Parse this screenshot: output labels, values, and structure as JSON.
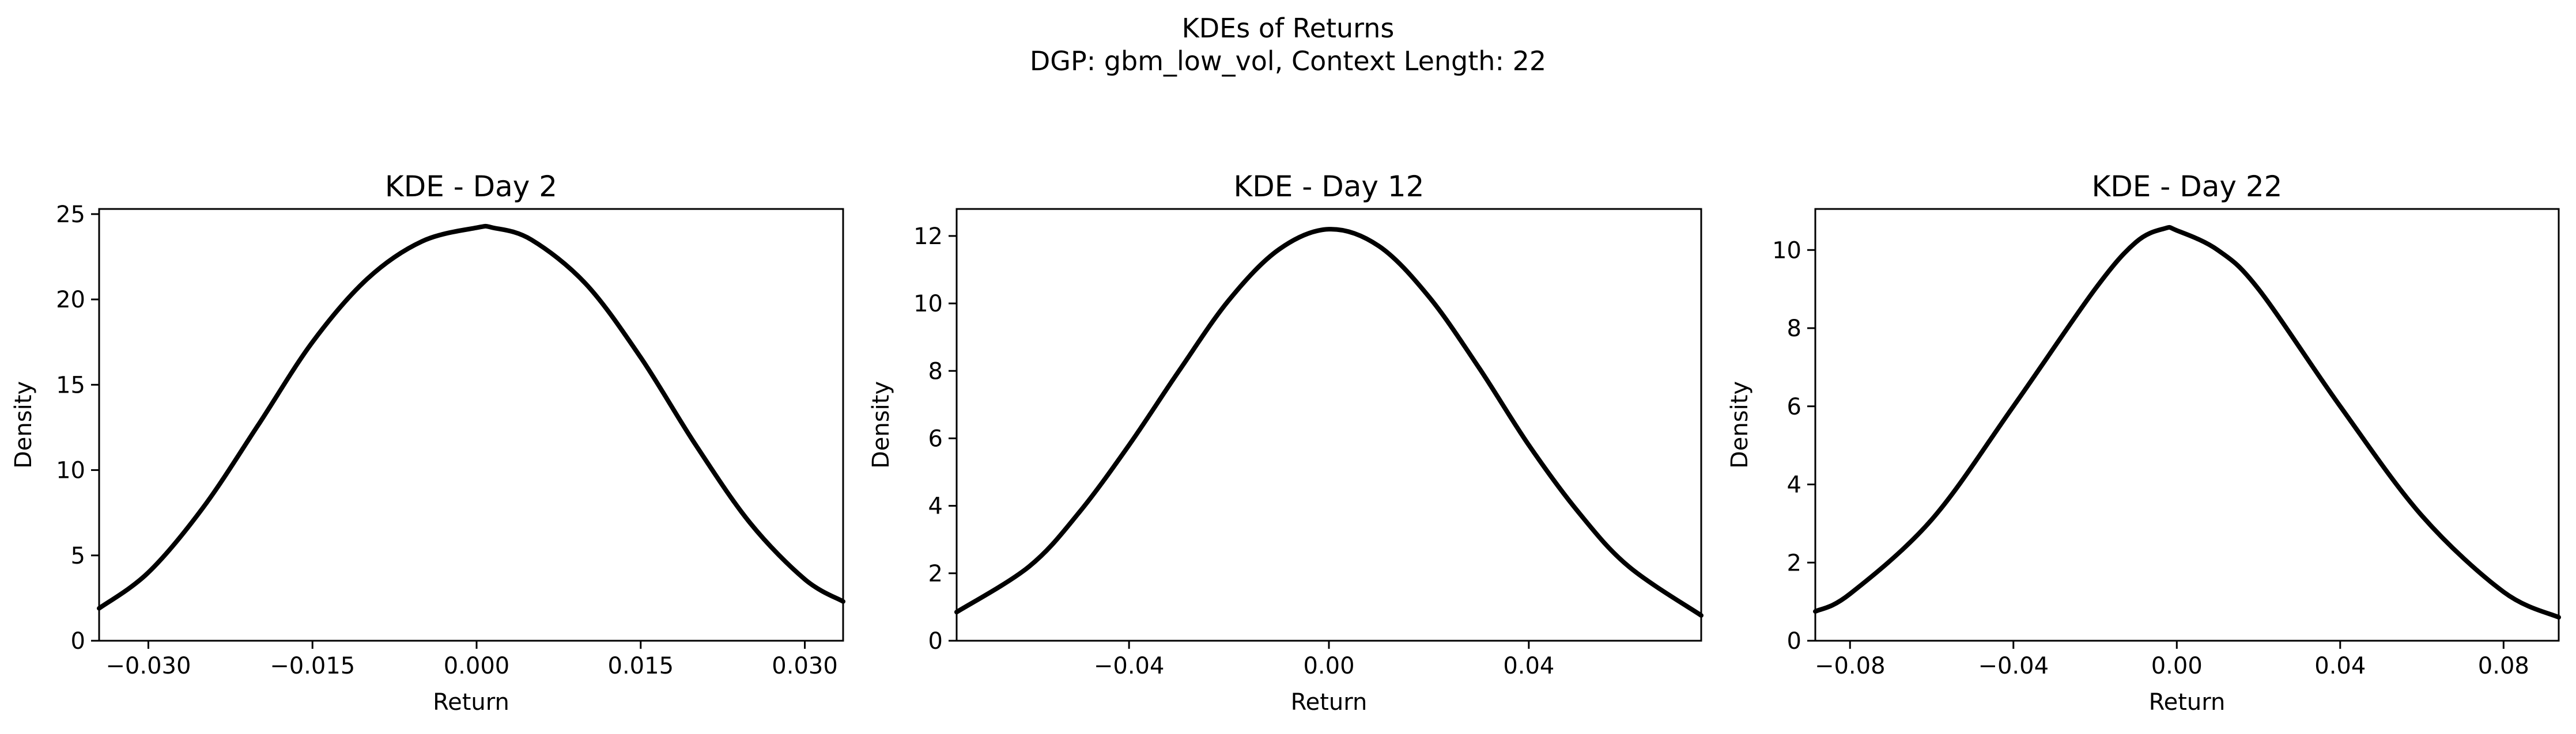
{
  "figure": {
    "title_line1": "KDEs of Returns",
    "title_line2": "DGP: gbm_low_vol, Context Length: 22",
    "line_color": "#000000"
  },
  "chart_data": [
    {
      "type": "line",
      "title": "KDE - Day 2",
      "xlabel": "Return",
      "ylabel": "Density",
      "xlim": [
        -0.0345,
        0.0335
      ],
      "ylim": [
        0,
        25.3
      ],
      "xticks": [
        -0.03,
        -0.015,
        0.0,
        0.015,
        0.03
      ],
      "xtick_labels": [
        "−0.030",
        "−0.015",
        "0.000",
        "0.015",
        "0.030"
      ],
      "yticks": [
        0,
        5,
        10,
        15,
        20,
        25
      ],
      "ytick_labels": [
        "0",
        "5",
        "10",
        "15",
        "20",
        "25"
      ],
      "series": [
        {
          "name": "KDE",
          "x": [
            -0.0345,
            -0.03,
            -0.025,
            -0.02,
            -0.015,
            -0.01,
            -0.005,
            0.0,
            0.0015,
            0.005,
            0.01,
            0.015,
            0.02,
            0.025,
            0.03,
            0.0335
          ],
          "y": [
            1.9,
            4.0,
            7.8,
            12.6,
            17.5,
            21.2,
            23.4,
            24.2,
            24.2,
            23.5,
            20.9,
            16.6,
            11.5,
            6.9,
            3.6,
            2.3
          ]
        }
      ]
    },
    {
      "type": "line",
      "title": "KDE - Day 12",
      "xlabel": "Return",
      "ylabel": "Density",
      "xlim": [
        -0.0745,
        0.0745
      ],
      "ylim": [
        0,
        12.8
      ],
      "xticks": [
        -0.04,
        0.0,
        0.04
      ],
      "xtick_labels": [
        "−0.04",
        "0.00",
        "0.04"
      ],
      "yticks": [
        0,
        2,
        4,
        6,
        8,
        10,
        12
      ],
      "ytick_labels": [
        "0",
        "2",
        "4",
        "6",
        "8",
        "10",
        "12"
      ],
      "series": [
        {
          "name": "KDE",
          "x": [
            -0.0745,
            -0.06,
            -0.05,
            -0.04,
            -0.03,
            -0.02,
            -0.01,
            0.0,
            0.01,
            0.02,
            0.03,
            0.04,
            0.05,
            0.06,
            0.0745
          ],
          "y": [
            0.85,
            2.2,
            3.8,
            5.8,
            8.0,
            10.1,
            11.6,
            12.2,
            11.7,
            10.2,
            8.1,
            5.8,
            3.8,
            2.2,
            0.75
          ]
        }
      ]
    },
    {
      "type": "line",
      "title": "KDE - Day 22",
      "xlabel": "Return",
      "ylabel": "Density",
      "xlim": [
        -0.0885,
        0.0935
      ],
      "ylim": [
        0,
        11.05
      ],
      "xticks": [
        -0.08,
        -0.04,
        0.0,
        0.04,
        0.08
      ],
      "xtick_labels": [
        "−0.08",
        "−0.04",
        "0.00",
        "0.04",
        "0.08"
      ],
      "yticks": [
        0,
        2,
        4,
        6,
        8,
        10
      ],
      "ytick_labels": [
        "0",
        "2",
        "4",
        "6",
        "8",
        "10"
      ],
      "series": [
        {
          "name": "KDE",
          "x": [
            -0.0885,
            -0.08,
            -0.06,
            -0.04,
            -0.02,
            -0.01,
            -0.003,
            0.0,
            0.01,
            0.02,
            0.04,
            0.06,
            0.08,
            0.0935
          ],
          "y": [
            0.75,
            1.2,
            3.1,
            6.0,
            9.0,
            10.2,
            10.55,
            10.5,
            10.0,
            9.0,
            6.0,
            3.2,
            1.25,
            0.6
          ]
        }
      ]
    }
  ]
}
